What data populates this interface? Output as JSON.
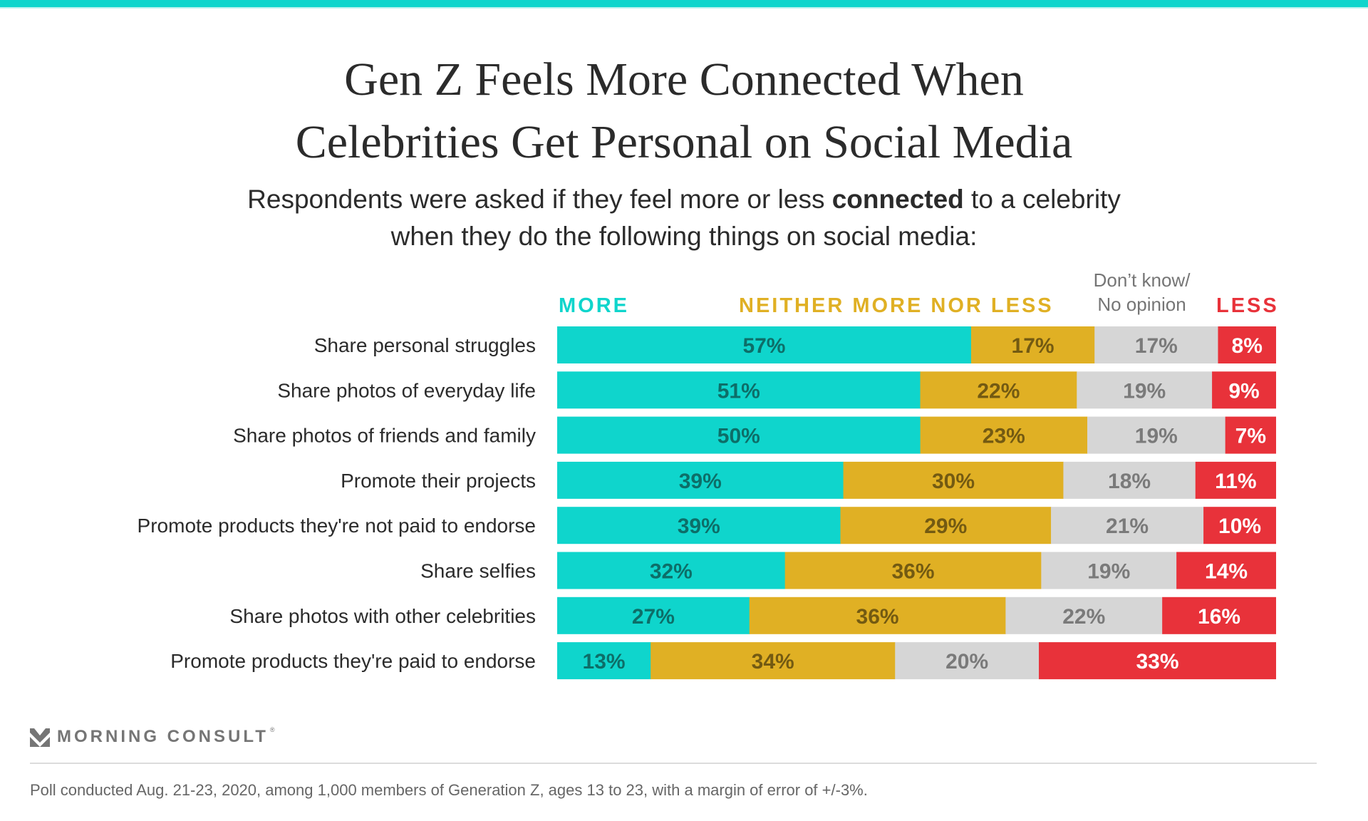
{
  "title_line1": "Gen Z Feels More Connected When",
  "title_line2": "Celebrities Get Personal on Social Media",
  "subtitle": {
    "pre": "Respondents were asked if they feel more or less ",
    "bold": "connected",
    "post": " to a celebrity",
    "line2": "when they do the following things on social media:"
  },
  "legend": {
    "more": "MORE",
    "neither": "NEITHER MORE NOR LESS",
    "dont_know_line1": "Don’t know/",
    "dont_know_line2": "No opinion",
    "less": "LESS"
  },
  "colors": {
    "more": "#0fd5cc",
    "neither": "#e0b024",
    "dont_know": "#d6d6d6",
    "less": "#e8323a",
    "more_label": "#0d6e68",
    "neither_label": "#735a12",
    "dont_know_label": "#7a7a7a",
    "less_label": "#ffffff",
    "accent": "#0fd5cc"
  },
  "chart_data": {
    "type": "bar",
    "stacked": true,
    "orientation": "horizontal",
    "title": "Gen Z Feels More Connected When Celebrities Get Personal on Social Media",
    "subtitle": "Respondents were asked if they feel more or less connected to a celebrity when they do the following things on social media:",
    "categories": [
      "Share personal struggles",
      "Share photos of everyday life",
      "Share photos of friends and family",
      "Promote their projects",
      "Promote products they're not paid to endorse",
      "Share selfies",
      "Share photos with other celebrities",
      "Promote products they're paid to endorse"
    ],
    "series": [
      {
        "name": "MORE",
        "key": "more",
        "values": [
          57,
          51,
          50,
          39,
          39,
          32,
          27,
          13
        ]
      },
      {
        "name": "NEITHER MORE NOR LESS",
        "key": "neither",
        "values": [
          17,
          22,
          23,
          30,
          29,
          36,
          36,
          34
        ]
      },
      {
        "name": "Don’t know/ No opinion",
        "key": "dont_know",
        "values": [
          17,
          19,
          19,
          18,
          21,
          19,
          22,
          20
        ]
      },
      {
        "name": "LESS",
        "key": "less",
        "values": [
          8,
          9,
          7,
          11,
          10,
          14,
          16,
          33
        ]
      }
    ],
    "value_suffix": "%",
    "xlabel": "",
    "ylabel": "",
    "legend_position": "top",
    "grid": false
  },
  "brand": {
    "logo_text": "MORNING CONSULT",
    "registered": "®"
  },
  "footnote": "Poll conducted Aug. 21-23, 2020, among 1,000 members of Generation Z, ages 13 to 23, with a margin of error of +/-3%."
}
